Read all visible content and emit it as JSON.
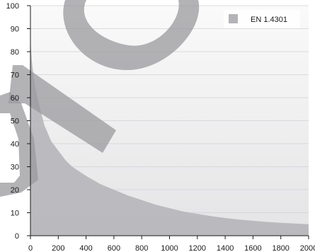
{
  "chart_data": {
    "type": "area",
    "title": "",
    "xlabel": "",
    "ylabel": "",
    "xlim": [
      0,
      2000
    ],
    "ylim": [
      0,
      100
    ],
    "xticks": [
      0,
      200,
      400,
      600,
      800,
      1000,
      1200,
      1400,
      1600,
      1800,
      2000
    ],
    "yticks": [
      0,
      10,
      20,
      30,
      40,
      50,
      60,
      70,
      80,
      90,
      100
    ],
    "xtick_labels": [
      "0",
      "200",
      "400",
      "600",
      "800",
      "1000",
      "1200",
      "1400",
      "1600",
      "1800",
      "2000"
    ],
    "ytick_labels": [
      "0",
      "10",
      "20",
      "30",
      "40",
      "50",
      "60",
      "70",
      "80",
      "90",
      "100"
    ],
    "grid": true,
    "legend_position": "top-right",
    "series": [
      {
        "name": "EN 1.4301",
        "color": "#b4b4b8",
        "x": [
          0,
          10,
          25,
          50,
          75,
          100,
          150,
          200,
          250,
          300,
          400,
          500,
          600,
          700,
          800,
          900,
          1000,
          1100,
          1200,
          1300,
          1400,
          1500,
          1600,
          1700,
          1800,
          1900,
          2000
        ],
        "y": [
          85,
          76,
          68,
          60,
          54,
          48,
          41,
          37,
          33,
          30,
          26,
          22.5,
          20,
          17.5,
          15.5,
          13.5,
          12,
          10.5,
          9.5,
          8.5,
          7.7,
          7,
          6.5,
          6,
          5.6,
          5.3,
          5
        ]
      }
    ],
    "watermark_color": "#9a9a9e"
  }
}
